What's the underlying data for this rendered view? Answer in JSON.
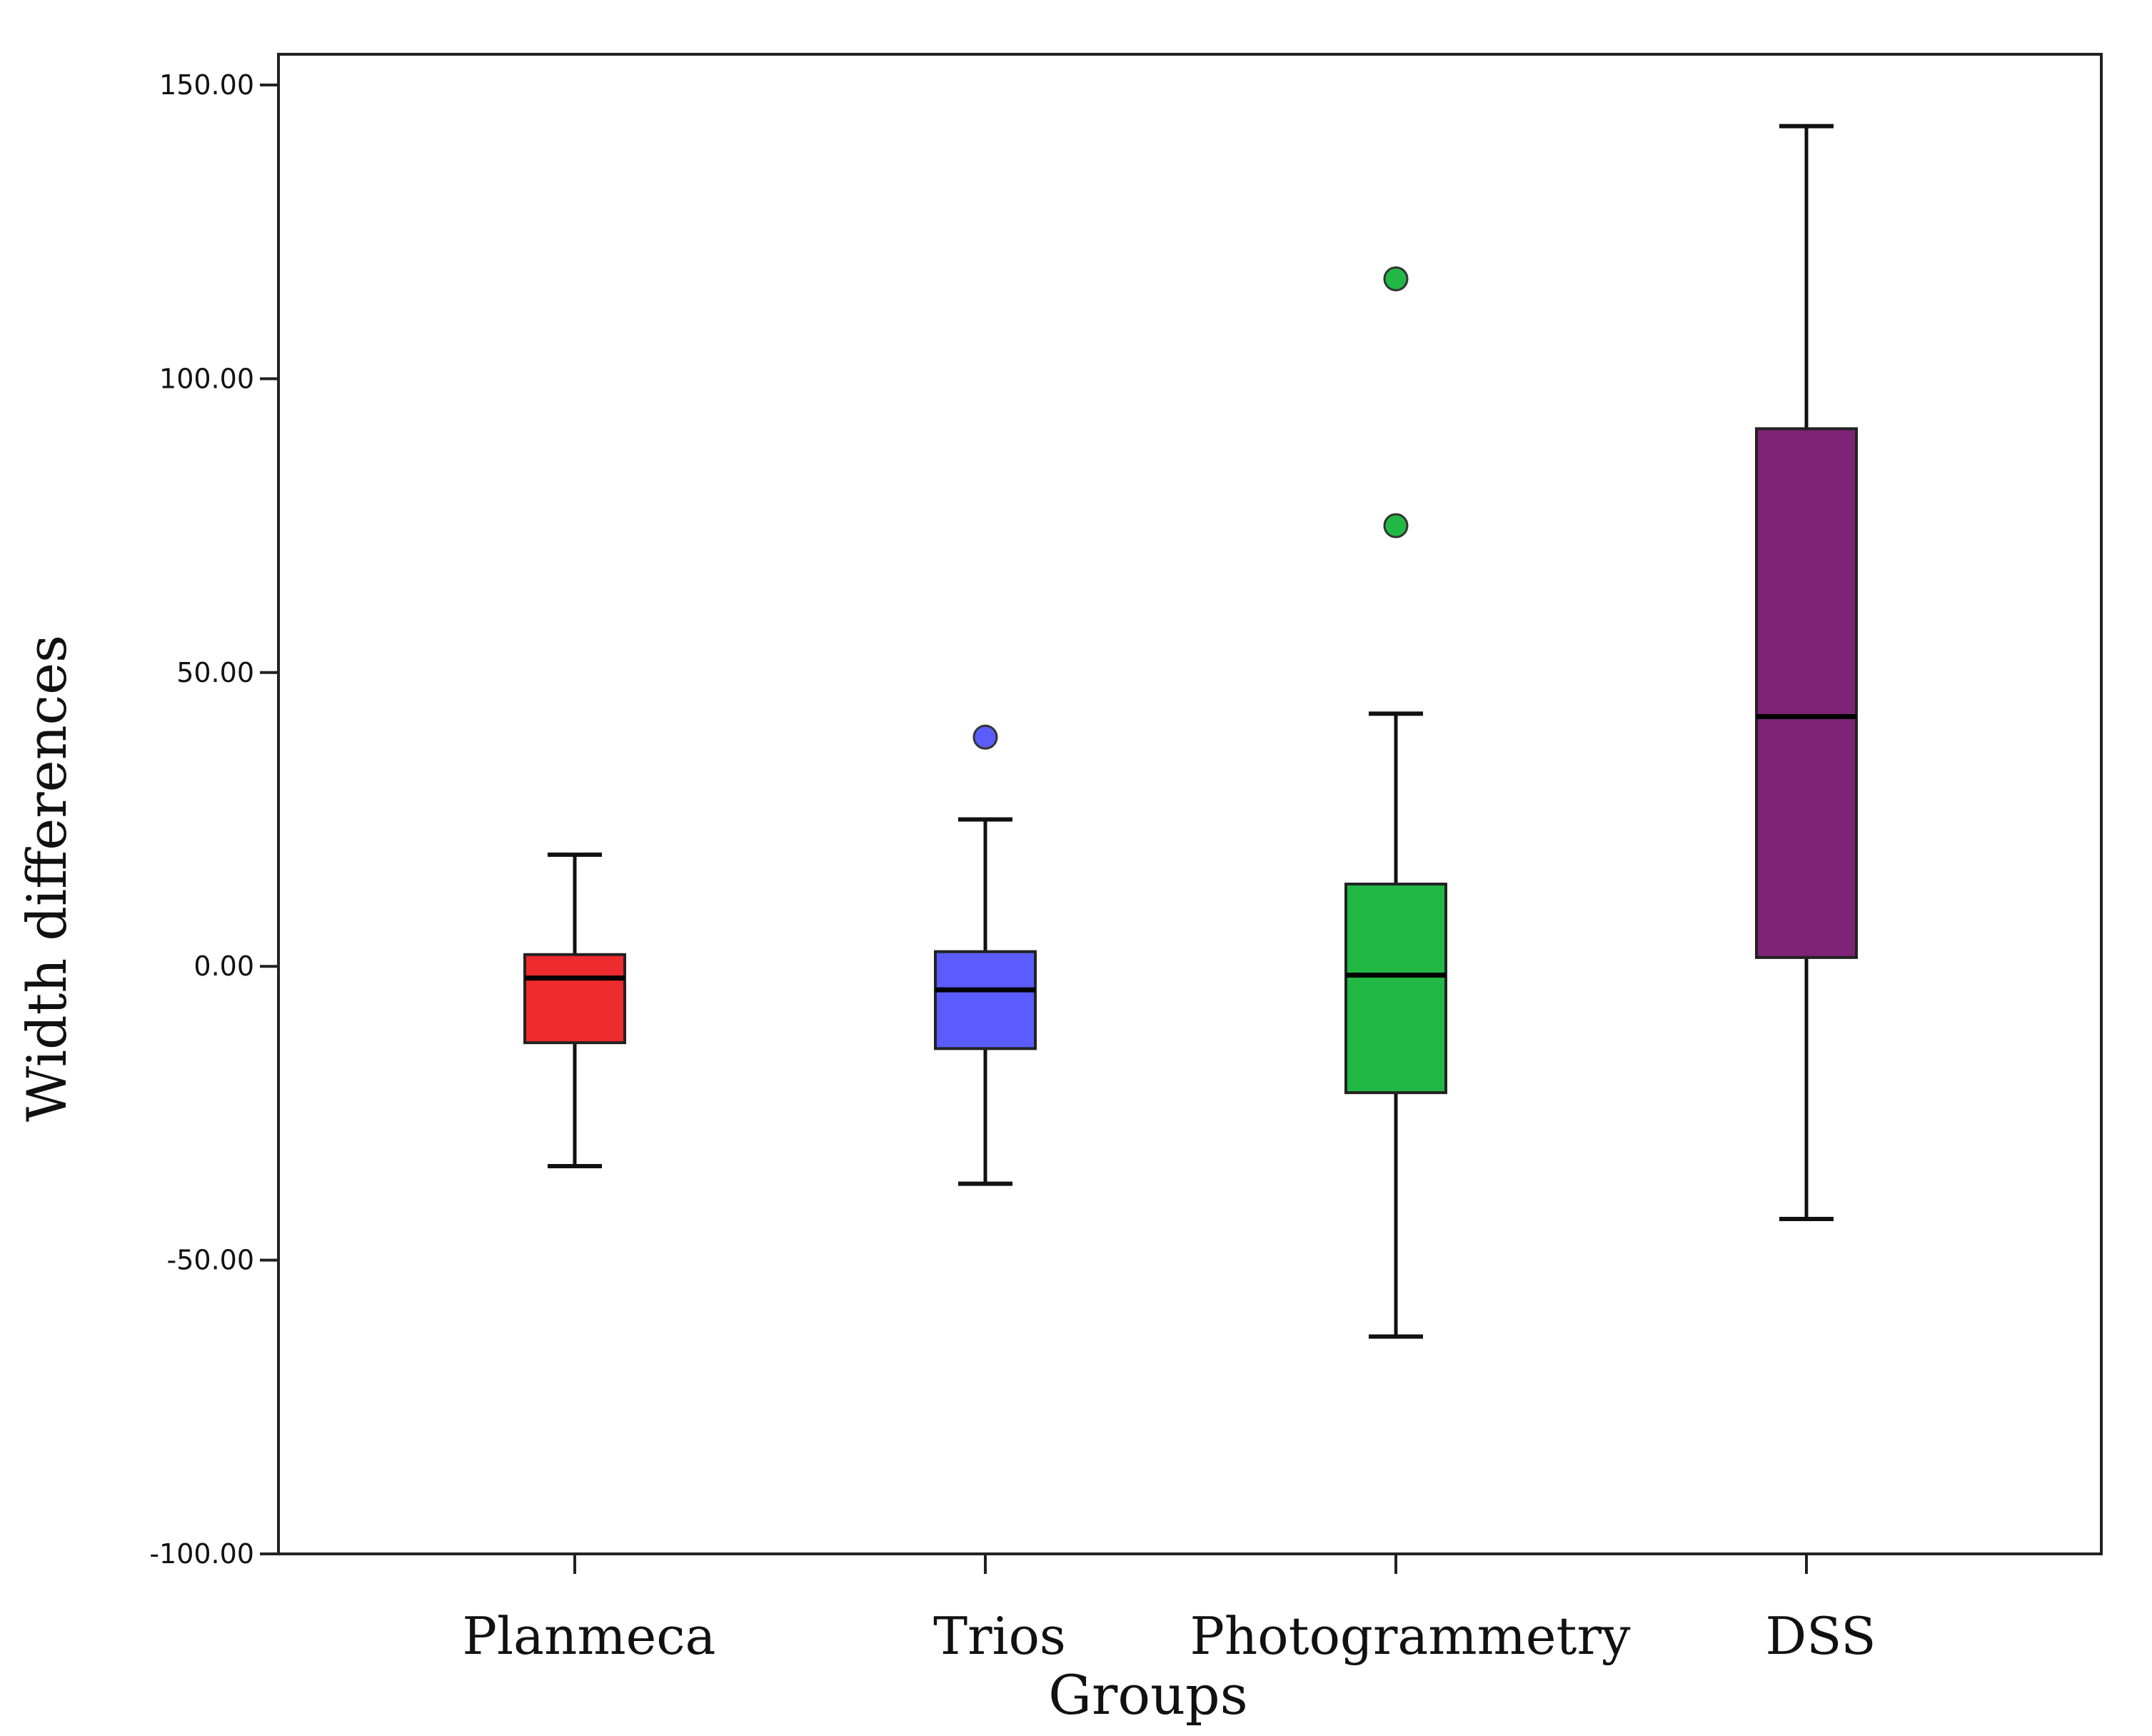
{
  "chart_data": {
    "type": "box",
    "title": "",
    "xlabel": "Groups",
    "ylabel": "Width differences",
    "ylim": [
      -100,
      150
    ],
    "yticks": [
      150,
      100,
      50,
      0,
      -50,
      -100
    ],
    "ytick_labels": [
      "150.00",
      "100.00",
      "50.00",
      "0.00",
      "-50.00",
      "-100.00"
    ],
    "categories": [
      "Planmeca",
      "Trios",
      "Photogrammetry",
      "DSS"
    ],
    "boxes": [
      {
        "name": "Planmeca",
        "color": "#EE2B2F",
        "whisker_low": -34,
        "q1": -13,
        "median": -2,
        "q3": 2,
        "whisker_high": 19,
        "outliers": []
      },
      {
        "name": "Trios",
        "color": "#5A5CFB",
        "whisker_low": -37,
        "q1": -14,
        "median": -4,
        "q3": 2.5,
        "whisker_high": 25,
        "outliers": [
          39
        ]
      },
      {
        "name": "Photogrammetry",
        "color": "#21B845",
        "whisker_low": -63,
        "q1": -21.5,
        "median": -1.5,
        "q3": 14,
        "whisker_high": 43,
        "outliers": [
          75,
          117
        ]
      },
      {
        "name": "DSS",
        "color": "#7E2376",
        "whisker_low": -43,
        "q1": 1.5,
        "median": 42.5,
        "q3": 91.5,
        "whisker_high": 143,
        "outliers": []
      }
    ]
  }
}
